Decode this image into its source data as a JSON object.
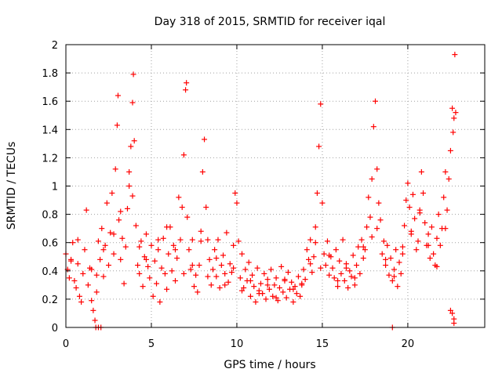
{
  "chart_data": {
    "type": "scatter",
    "title": "Day 318 of 2015, SRMTID for receiver iqal",
    "xlabel": "GPS time / hours",
    "ylabel": "SRMTID / TECUs",
    "xlim": [
      0,
      24.5
    ],
    "ylim": [
      0,
      2
    ],
    "xticks": [
      0,
      5,
      10,
      15,
      20
    ],
    "yticks": [
      0,
      0.2,
      0.4,
      0.6,
      0.8,
      1,
      1.2,
      1.4,
      1.6,
      1.8,
      2
    ],
    "grid": true,
    "marker": "+",
    "color": "#ff0000",
    "series": [
      {
        "name": "SRMTID",
        "x": [
          0.0,
          0.1,
          0.2,
          0.3,
          0.4,
          0.5,
          0.6,
          0.7,
          0.8,
          0.9,
          1.0,
          1.1,
          1.2,
          1.3,
          1.4,
          1.5,
          1.6,
          1.7,
          1.8,
          1.9,
          2.0,
          2.1,
          2.2,
          2.3,
          2.4,
          2.5,
          2.6,
          2.7,
          2.8,
          2.9,
          3.0,
          3.05,
          3.1,
          3.2,
          3.3,
          3.4,
          3.5,
          3.6,
          3.7,
          3.8,
          3.9,
          3.95,
          4.0,
          4.1,
          4.2,
          4.3,
          4.4,
          4.5,
          4.6,
          4.7,
          4.8,
          4.9,
          5.0,
          5.1,
          5.2,
          5.3,
          5.4,
          5.5,
          5.6,
          5.7,
          5.8,
          5.9,
          6.0,
          6.1,
          6.2,
          6.3,
          6.4,
          6.5,
          6.6,
          6.7,
          6.8,
          6.9,
          7.0,
          7.05,
          7.1,
          7.2,
          7.3,
          7.4,
          7.5,
          7.6,
          7.7,
          7.8,
          7.9,
          8.0,
          8.1,
          8.2,
          8.3,
          8.4,
          8.5,
          8.6,
          8.7,
          8.8,
          8.9,
          9.0,
          9.1,
          9.2,
          9.3,
          9.4,
          9.5,
          9.6,
          9.7,
          9.8,
          9.9,
          10.0,
          10.1,
          10.2,
          10.3,
          10.4,
          10.5,
          10.6,
          10.7,
          10.8,
          10.9,
          11.0,
          11.1,
          11.2,
          11.3,
          11.4,
          11.5,
          11.6,
          11.7,
          11.8,
          11.9,
          12.0,
          12.1,
          12.2,
          12.3,
          12.4,
          12.5,
          12.6,
          12.7,
          12.8,
          12.9,
          13.0,
          13.1,
          13.2,
          13.3,
          13.4,
          13.5,
          13.6,
          13.7,
          13.8,
          13.9,
          14.0,
          14.1,
          14.2,
          14.3,
          14.4,
          14.5,
          14.6,
          14.7,
          14.8,
          14.9,
          15.0,
          15.1,
          15.2,
          15.3,
          15.4,
          15.5,
          15.6,
          15.7,
          15.8,
          15.9,
          16.0,
          16.1,
          16.2,
          16.3,
          16.4,
          16.5,
          16.6,
          16.7,
          16.8,
          16.9,
          17.0,
          17.1,
          17.2,
          17.3,
          17.4,
          17.5,
          17.6,
          17.7,
          17.8,
          17.9,
          18.0,
          18.1,
          18.2,
          18.3,
          18.4,
          18.5,
          18.6,
          18.7,
          18.8,
          18.9,
          19.0,
          19.1,
          19.2,
          19.3,
          19.4,
          19.5,
          19.6,
          19.7,
          19.8,
          19.9,
          20.0,
          20.1,
          20.2,
          20.3,
          20.4,
          20.5,
          20.6,
          20.7,
          20.8,
          20.9,
          21.0,
          21.1,
          21.2,
          21.3,
          21.4,
          21.5,
          21.6,
          21.7,
          21.8,
          21.9,
          22.0,
          22.1,
          22.2,
          22.3,
          22.4,
          22.5,
          22.6,
          22.65,
          22.7,
          22.75,
          22.8,
          0.3,
          0.7,
          1.5,
          1.8,
          2.2,
          2.8,
          3.2,
          3.7,
          3.9,
          4.3,
          4.7,
          5.4,
          5.9,
          6.4,
          6.9,
          7.4,
          7.9,
          8.3,
          8.8,
          9.3,
          9.8,
          10.3,
          10.8,
          11.3,
          11.8,
          12.3,
          12.8,
          13.3,
          13.8,
          14.3,
          14.6,
          14.9,
          15.4,
          15.9,
          16.4,
          16.9,
          17.4,
          17.9,
          18.2,
          18.7,
          19.2,
          19.7,
          20.2,
          20.7,
          21.2,
          21.7,
          22.2,
          22.5,
          22.7,
          1.75,
          1.9,
          2.05,
          19.1,
          22.6,
          22.7
        ],
        "y": [
          0.52,
          0.41,
          0.35,
          0.47,
          0.6,
          0.33,
          0.28,
          0.45,
          0.22,
          0.18,
          0.38,
          0.55,
          0.83,
          0.3,
          0.42,
          0.19,
          0.12,
          0.05,
          0.25,
          0.61,
          0.48,
          0.7,
          0.36,
          0.58,
          0.88,
          0.44,
          0.67,
          0.95,
          0.52,
          1.12,
          1.43,
          1.64,
          0.76,
          0.48,
          0.63,
          0.31,
          0.57,
          0.84,
          1.1,
          1.28,
          1.59,
          1.79,
          1.32,
          0.72,
          0.44,
          0.38,
          0.61,
          0.29,
          0.5,
          0.66,
          0.43,
          0.35,
          0.58,
          0.22,
          0.47,
          0.31,
          0.55,
          0.18,
          0.42,
          0.63,
          0.38,
          0.27,
          0.52,
          0.71,
          0.4,
          0.58,
          0.33,
          0.49,
          0.92,
          0.62,
          0.85,
          1.22,
          1.68,
          1.73,
          0.78,
          0.55,
          0.41,
          0.62,
          0.29,
          0.37,
          0.25,
          0.44,
          0.68,
          1.1,
          1.33,
          0.85,
          0.62,
          0.48,
          0.3,
          0.41,
          0.55,
          0.36,
          0.62,
          0.28,
          0.44,
          0.51,
          0.38,
          0.67,
          0.32,
          0.45,
          0.39,
          0.58,
          0.95,
          0.88,
          0.61,
          0.35,
          0.52,
          0.28,
          0.41,
          0.33,
          0.46,
          0.22,
          0.37,
          0.29,
          0.18,
          0.42,
          0.26,
          0.31,
          0.24,
          0.38,
          0.2,
          0.34,
          0.27,
          0.41,
          0.22,
          0.3,
          0.35,
          0.19,
          0.28,
          0.43,
          0.25,
          0.33,
          0.21,
          0.39,
          0.27,
          0.32,
          0.18,
          0.29,
          0.24,
          0.36,
          0.22,
          0.3,
          0.41,
          0.34,
          0.55,
          0.48,
          0.62,
          0.39,
          0.5,
          0.71,
          0.95,
          1.28,
          1.58,
          0.88,
          0.52,
          0.44,
          0.61,
          0.37,
          0.5,
          0.42,
          0.35,
          0.55,
          0.29,
          0.47,
          0.38,
          0.62,
          0.33,
          0.45,
          0.28,
          0.4,
          0.36,
          0.51,
          0.3,
          0.44,
          0.57,
          0.38,
          0.62,
          0.49,
          0.55,
          0.71,
          0.92,
          0.78,
          1.05,
          1.42,
          1.6,
          1.12,
          0.88,
          0.76,
          0.52,
          0.61,
          0.44,
          0.58,
          0.37,
          0.49,
          0.33,
          0.41,
          0.55,
          0.29,
          0.46,
          0.38,
          0.57,
          0.72,
          0.9,
          1.02,
          0.85,
          0.68,
          0.94,
          0.77,
          0.55,
          0.61,
          0.83,
          1.1,
          0.95,
          0.74,
          0.58,
          0.66,
          0.49,
          0.71,
          0.52,
          0.44,
          0.63,
          0.8,
          0.58,
          0.7,
          0.92,
          1.1,
          0.83,
          1.05,
          1.25,
          1.55,
          1.38,
          1.48,
          1.93,
          1.52,
          0.48,
          0.62,
          0.41,
          0.37,
          0.55,
          0.66,
          0.82,
          1.0,
          0.93,
          0.57,
          0.48,
          0.62,
          0.71,
          0.55,
          0.38,
          0.44,
          0.61,
          0.36,
          0.49,
          0.3,
          0.42,
          0.26,
          0.33,
          0.24,
          0.3,
          0.21,
          0.34,
          0.27,
          0.31,
          0.45,
          0.6,
          0.42,
          0.51,
          0.33,
          0.42,
          0.35,
          0.57,
          0.64,
          0.7,
          0.48,
          0.36,
          0.52,
          0.66,
          0.81,
          0.58,
          0.43,
          0.7,
          0.12,
          0.06,
          0.0,
          0.0,
          0.0,
          0.0,
          0.1,
          0.03
        ]
      }
    ]
  }
}
